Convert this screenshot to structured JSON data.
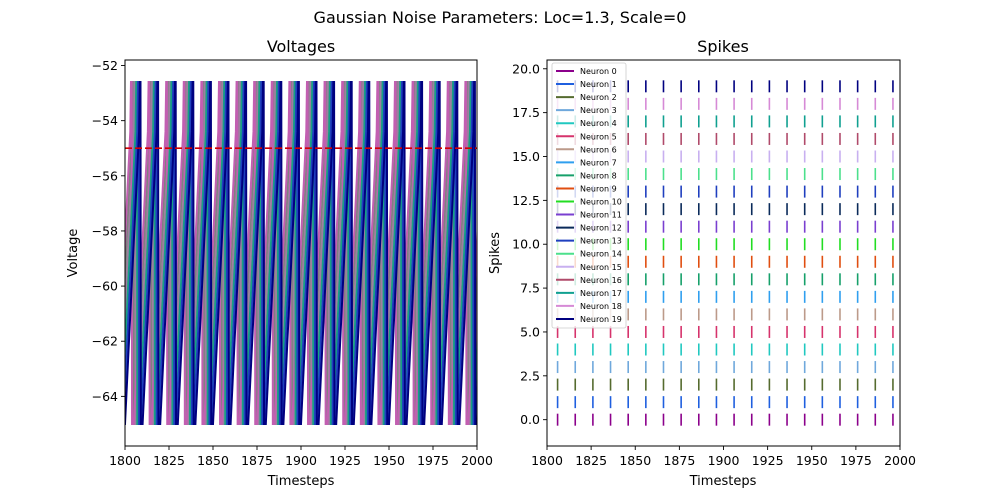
{
  "suptitle": "Gaussian Noise Parameters: Loc=1.3, Scale=0",
  "chart_data": [
    {
      "type": "line",
      "title": "Voltages",
      "xlabel": "Timesteps",
      "ylabel": "Voltage",
      "xlim": [
        1800,
        2000
      ],
      "ylim": [
        -65.8,
        -51.8
      ],
      "xticks": [
        1800,
        1825,
        1850,
        1875,
        1900,
        1925,
        1950,
        1975,
        2000
      ],
      "yticks": [
        -64,
        -62,
        -60,
        -58,
        -56,
        -54,
        -52
      ],
      "threshold": {
        "value": -55,
        "color": "#d40000",
        "style": "dashed"
      },
      "reset_voltage": -65,
      "peak_voltage": -52.6,
      "spike_period": 10,
      "series": [
        {
          "phase": 5,
          "color": "#808080"
        },
        {
          "phase": 6,
          "color": "#9e7fa0"
        },
        {
          "phase": 4,
          "color": "#c25fb1"
        },
        {
          "phase": 7,
          "color": "#16a085"
        },
        {
          "phase": 8,
          "color": "#1f3fbf"
        },
        {
          "phase": 9,
          "color": "#000080"
        }
      ],
      "grid": false
    },
    {
      "type": "scatter",
      "marker": "|",
      "title": "Spikes",
      "xlabel": "Timesteps",
      "ylabel": "Spikes",
      "xlim": [
        1800,
        2000
      ],
      "ylim": [
        -1.5,
        20.5
      ],
      "xticks": [
        1800,
        1825,
        1850,
        1875,
        1900,
        1925,
        1950,
        1975,
        2000
      ],
      "yticks": [
        0.0,
        2.5,
        5.0,
        7.5,
        10.0,
        12.5,
        15.0,
        17.5,
        20.0
      ],
      "spike_start": 1806,
      "spike_period": 10,
      "spike_end": 1996,
      "series": [
        {
          "name": "Neuron 0",
          "color": "#8b008b"
        },
        {
          "name": "Neuron 1",
          "color": "#1f5fdf"
        },
        {
          "name": "Neuron 2",
          "color": "#556b2f"
        },
        {
          "name": "Neuron 3",
          "color": "#6fa8dc"
        },
        {
          "name": "Neuron 4",
          "color": "#20c8c0"
        },
        {
          "name": "Neuron 5",
          "color": "#d6336c"
        },
        {
          "name": "Neuron 6",
          "color": "#bc9a8a"
        },
        {
          "name": "Neuron 7",
          "color": "#2f9fef"
        },
        {
          "name": "Neuron 8",
          "color": "#16a06a"
        },
        {
          "name": "Neuron 9",
          "color": "#e04e10"
        },
        {
          "name": "Neuron 10",
          "color": "#22dd22"
        },
        {
          "name": "Neuron 11",
          "color": "#7a3fd0"
        },
        {
          "name": "Neuron 12",
          "color": "#0a2a5a"
        },
        {
          "name": "Neuron 13",
          "color": "#1f3fbf"
        },
        {
          "name": "Neuron 14",
          "color": "#4ce08c"
        },
        {
          "name": "Neuron 15",
          "color": "#c8b0f0"
        },
        {
          "name": "Neuron 16",
          "color": "#b04a6a"
        },
        {
          "name": "Neuron 17",
          "color": "#10a090"
        },
        {
          "name": "Neuron 18",
          "color": "#d68ad6"
        },
        {
          "name": "Neuron 19",
          "color": "#000080"
        }
      ],
      "legend": "upper-left",
      "grid": false
    }
  ]
}
